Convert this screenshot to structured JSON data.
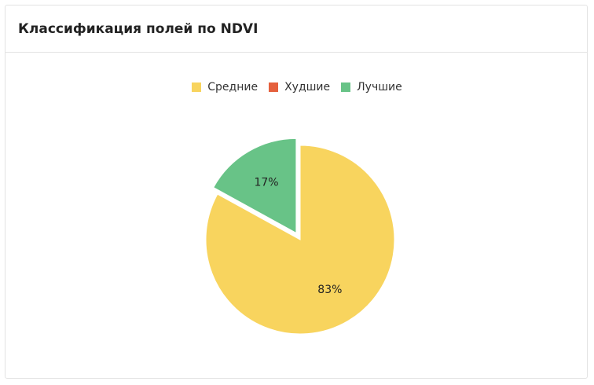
{
  "header": {
    "title": "Классификация полей по NDVI"
  },
  "chart_data": {
    "type": "pie",
    "categories": [
      "Средние",
      "Худшие",
      "Лучшие"
    ],
    "values": [
      83,
      0,
      17
    ],
    "value_labels": [
      "83%",
      null,
      "17%"
    ],
    "colors": [
      "#f8d45e",
      "#e5603d",
      "#68c387"
    ],
    "legend": "top"
  }
}
